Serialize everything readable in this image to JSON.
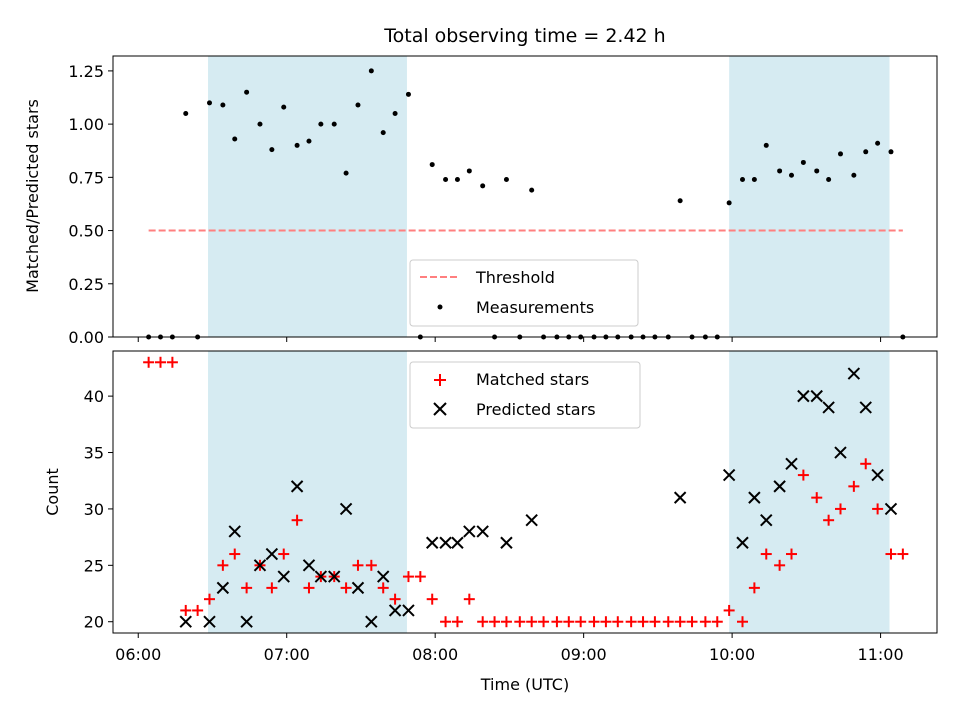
{
  "chart_data": {
    "type": "scatter",
    "title": "Total observing time = 2.42 h",
    "xlabel": "Time (UTC)",
    "x_unit": "hours UTC",
    "xlim": [
      5.83,
      11.38
    ],
    "xticks": [
      {
        "value": 6.0,
        "label": "06:00"
      },
      {
        "value": 7.0,
        "label": "07:00"
      },
      {
        "value": 8.0,
        "label": "08:00"
      },
      {
        "value": 9.0,
        "label": "09:00"
      },
      {
        "value": 10.0,
        "label": "10:00"
      },
      {
        "value": 11.0,
        "label": "11:00"
      }
    ],
    "shaded_intervals": [
      {
        "x0": 6.47,
        "x1": 7.81,
        "color": "#add8e6"
      },
      {
        "x0": 9.98,
        "x1": 11.06,
        "color": "#add8e6"
      }
    ],
    "top_panel": {
      "ylabel": "Matched/Predicted stars",
      "ylim": [
        0,
        1.32
      ],
      "yticks": [
        0.0,
        0.25,
        0.5,
        0.75,
        1.0,
        1.25
      ],
      "ytick_labels": [
        "0.00",
        "0.25",
        "0.50",
        "0.75",
        "1.00",
        "1.25"
      ],
      "legend_placement": "lower center",
      "threshold": {
        "name": "Threshold",
        "y": 0.5,
        "x_range": [
          6.07,
          11.15
        ],
        "color": "#ff7f7f"
      },
      "measurements": {
        "name": "Measurements",
        "color": "#000000",
        "points": [
          [
            6.07,
            0.0
          ],
          [
            6.15,
            0.0
          ],
          [
            6.23,
            0.0
          ],
          [
            6.32,
            1.05
          ],
          [
            6.4,
            0.0
          ],
          [
            6.48,
            1.1
          ],
          [
            6.57,
            1.09
          ],
          [
            6.65,
            0.93
          ],
          [
            6.73,
            1.15
          ],
          [
            6.82,
            1.0
          ],
          [
            6.9,
            0.88
          ],
          [
            6.98,
            1.08
          ],
          [
            7.07,
            0.9
          ],
          [
            7.15,
            0.92
          ],
          [
            7.23,
            1.0
          ],
          [
            7.32,
            1.0
          ],
          [
            7.4,
            0.77
          ],
          [
            7.48,
            1.09
          ],
          [
            7.57,
            1.25
          ],
          [
            7.65,
            0.96
          ],
          [
            7.73,
            1.05
          ],
          [
            7.82,
            1.14
          ],
          [
            7.9,
            0.0
          ],
          [
            7.98,
            0.81
          ],
          [
            8.07,
            0.74
          ],
          [
            8.15,
            0.74
          ],
          [
            8.23,
            0.78
          ],
          [
            8.32,
            0.71
          ],
          [
            8.4,
            0.0
          ],
          [
            8.48,
            0.74
          ],
          [
            8.57,
            0.0
          ],
          [
            8.65,
            0.69
          ],
          [
            8.73,
            0.0
          ],
          [
            8.82,
            0.0
          ],
          [
            8.9,
            0.0
          ],
          [
            8.98,
            0.0
          ],
          [
            9.07,
            0.0
          ],
          [
            9.15,
            0.0
          ],
          [
            9.23,
            0.0
          ],
          [
            9.32,
            0.0
          ],
          [
            9.4,
            0.0
          ],
          [
            9.48,
            0.0
          ],
          [
            9.57,
            0.0
          ],
          [
            9.65,
            0.64
          ],
          [
            9.73,
            0.0
          ],
          [
            9.82,
            0.0
          ],
          [
            9.9,
            0.0
          ],
          [
            9.98,
            0.63
          ],
          [
            10.07,
            0.74
          ],
          [
            10.15,
            0.74
          ],
          [
            10.23,
            0.9
          ],
          [
            10.32,
            0.78
          ],
          [
            10.4,
            0.76
          ],
          [
            10.48,
            0.82
          ],
          [
            10.57,
            0.78
          ],
          [
            10.65,
            0.74
          ],
          [
            10.73,
            0.86
          ],
          [
            10.82,
            0.76
          ],
          [
            10.9,
            0.87
          ],
          [
            10.98,
            0.91
          ],
          [
            11.07,
            0.87
          ],
          [
            11.15,
            0.0
          ]
        ]
      }
    },
    "bottom_panel": {
      "ylabel": "Count",
      "ylim": [
        19.0,
        44.0
      ],
      "yticks": [
        20,
        25,
        30,
        35,
        40
      ],
      "ytick_labels": [
        "20",
        "25",
        "30",
        "35",
        "40"
      ],
      "legend_placement": "upper center",
      "series": [
        {
          "name": "Matched stars",
          "marker": "plus",
          "color": "#ff0000",
          "points": [
            [
              6.07,
              43
            ],
            [
              6.15,
              43
            ],
            [
              6.23,
              43
            ],
            [
              6.32,
              21
            ],
            [
              6.4,
              21
            ],
            [
              6.48,
              22
            ],
            [
              6.57,
              25
            ],
            [
              6.65,
              26
            ],
            [
              6.73,
              23
            ],
            [
              6.82,
              25
            ],
            [
              6.9,
              23
            ],
            [
              6.98,
              26
            ],
            [
              7.07,
              29
            ],
            [
              7.15,
              23
            ],
            [
              7.23,
              24
            ],
            [
              7.32,
              24
            ],
            [
              7.4,
              23
            ],
            [
              7.48,
              25
            ],
            [
              7.57,
              25
            ],
            [
              7.65,
              23
            ],
            [
              7.73,
              22
            ],
            [
              7.82,
              24
            ],
            [
              7.9,
              24
            ],
            [
              7.98,
              22
            ],
            [
              8.07,
              20
            ],
            [
              8.15,
              20
            ],
            [
              8.23,
              22
            ],
            [
              8.32,
              20
            ],
            [
              8.4,
              20
            ],
            [
              8.48,
              20
            ],
            [
              8.57,
              20
            ],
            [
              8.65,
              20
            ],
            [
              8.73,
              20
            ],
            [
              8.82,
              20
            ],
            [
              8.9,
              20
            ],
            [
              8.98,
              20
            ],
            [
              9.07,
              20
            ],
            [
              9.15,
              20
            ],
            [
              9.23,
              20
            ],
            [
              9.32,
              20
            ],
            [
              9.4,
              20
            ],
            [
              9.48,
              20
            ],
            [
              9.57,
              20
            ],
            [
              9.65,
              20
            ],
            [
              9.73,
              20
            ],
            [
              9.82,
              20
            ],
            [
              9.9,
              20
            ],
            [
              9.98,
              21
            ],
            [
              10.07,
              20
            ],
            [
              10.15,
              23
            ],
            [
              10.23,
              26
            ],
            [
              10.32,
              25
            ],
            [
              10.4,
              26
            ],
            [
              10.48,
              33
            ],
            [
              10.57,
              31
            ],
            [
              10.65,
              29
            ],
            [
              10.73,
              30
            ],
            [
              10.82,
              32
            ],
            [
              10.9,
              34
            ],
            [
              10.98,
              30
            ],
            [
              11.07,
              26
            ],
            [
              11.15,
              26
            ]
          ]
        },
        {
          "name": "Predicted stars",
          "marker": "x",
          "color": "#000000",
          "points": [
            [
              6.32,
              20
            ],
            [
              6.48,
              20
            ],
            [
              6.57,
              23
            ],
            [
              6.65,
              28
            ],
            [
              6.73,
              20
            ],
            [
              6.82,
              25
            ],
            [
              6.9,
              26
            ],
            [
              6.98,
              24
            ],
            [
              7.07,
              32
            ],
            [
              7.15,
              25
            ],
            [
              7.23,
              24
            ],
            [
              7.32,
              24
            ],
            [
              7.4,
              30
            ],
            [
              7.48,
              23
            ],
            [
              7.57,
              20
            ],
            [
              7.65,
              24
            ],
            [
              7.73,
              21
            ],
            [
              7.82,
              21
            ],
            [
              7.98,
              27
            ],
            [
              8.07,
              27
            ],
            [
              8.15,
              27
            ],
            [
              8.23,
              28
            ],
            [
              8.32,
              28
            ],
            [
              8.48,
              27
            ],
            [
              8.65,
              29
            ],
            [
              9.65,
              31
            ],
            [
              9.98,
              33
            ],
            [
              10.07,
              27
            ],
            [
              10.15,
              31
            ],
            [
              10.23,
              29
            ],
            [
              10.32,
              32
            ],
            [
              10.4,
              34
            ],
            [
              10.48,
              40
            ],
            [
              10.57,
              40
            ],
            [
              10.65,
              39
            ],
            [
              10.73,
              35
            ],
            [
              10.82,
              42
            ],
            [
              10.9,
              39
            ],
            [
              10.98,
              33
            ],
            [
              11.07,
              30
            ]
          ]
        }
      ]
    }
  }
}
